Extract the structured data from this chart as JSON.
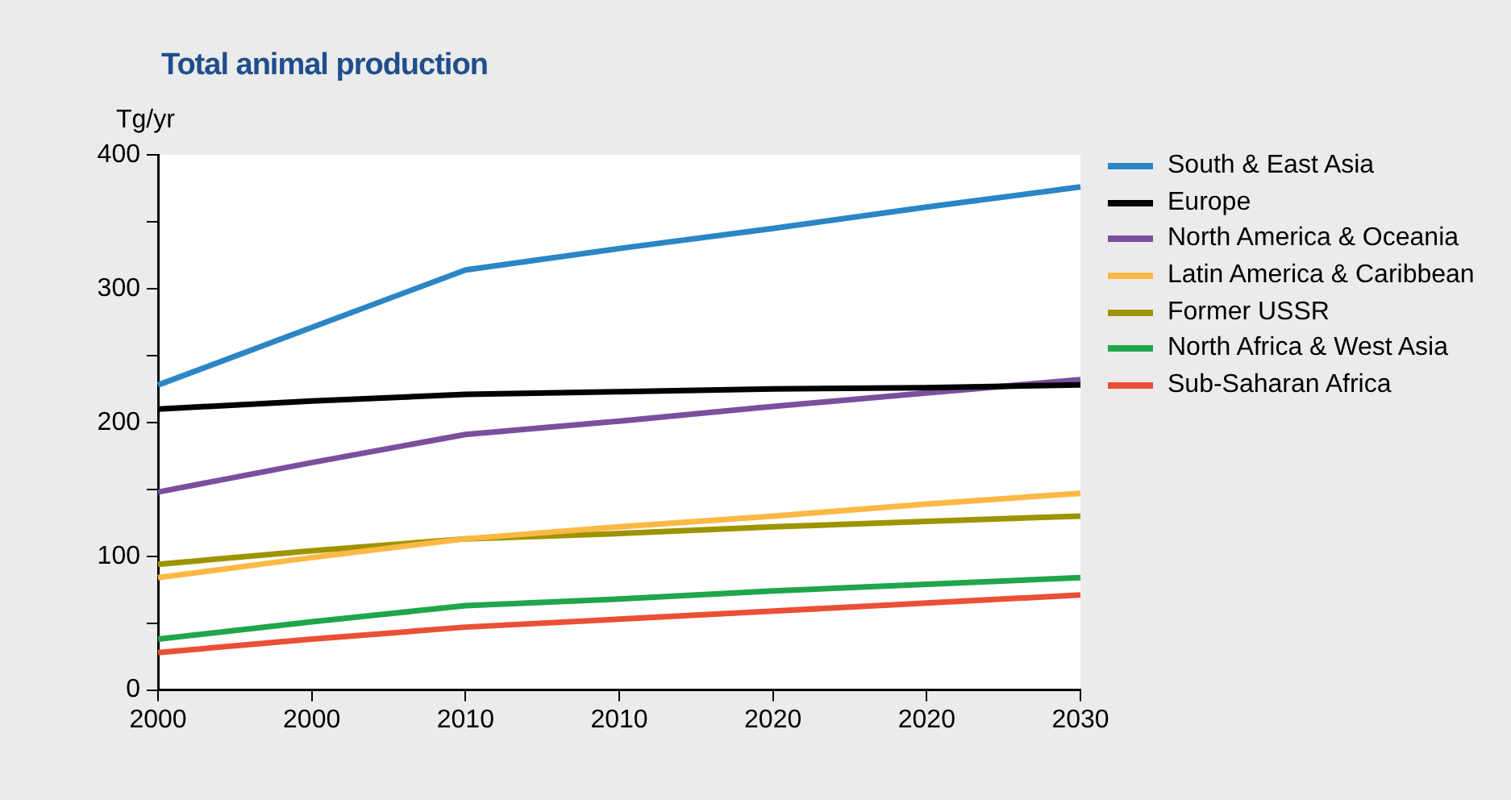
{
  "chart_data": {
    "type": "line",
    "title": "Total animal production",
    "ylabel": "Tg/yr",
    "categories": [
      "2000",
      "2000",
      "2010",
      "2010",
      "2020",
      "2020",
      "2030"
    ],
    "series": [
      {
        "name": "South & East Asia",
        "color": "#2b86c5",
        "values": [
          228,
          271,
          314,
          330,
          345,
          361,
          376
        ]
      },
      {
        "name": "Europe",
        "color": "#000000",
        "values": [
          210,
          216,
          221,
          223,
          225,
          226,
          228
        ]
      },
      {
        "name": "North America & Oceania",
        "color": "#7b4f9d",
        "values": [
          148,
          170,
          191,
          201,
          212,
          222,
          232
        ]
      },
      {
        "name": "Latin America & Caribbean",
        "color": "#fbb844",
        "values": [
          84,
          99,
          113,
          122,
          130,
          139,
          147
        ]
      },
      {
        "name": "Former USSR",
        "color": "#9e9400",
        "values": [
          94,
          104,
          113,
          117,
          122,
          126,
          130
        ]
      },
      {
        "name": "North Africa & West Asia",
        "color": "#1fa64a",
        "values": [
          38,
          51,
          63,
          68,
          74,
          79,
          84
        ]
      },
      {
        "name": "Sub-Saharan Africa",
        "color": "#ea5035",
        "values": [
          28,
          38,
          47,
          53,
          59,
          65,
          71
        ]
      }
    ],
    "ylim": [
      0,
      400
    ],
    "yticks": [
      0,
      {
        "value": 50,
        "label": null
      },
      100,
      {
        "value": 150,
        "label": null
      },
      200,
      {
        "value": 250,
        "label": null
      },
      300,
      {
        "value": 350,
        "label": null
      },
      400
    ],
    "grid": false,
    "legend": "right",
    "marker": "none",
    "line_style": "solid"
  }
}
